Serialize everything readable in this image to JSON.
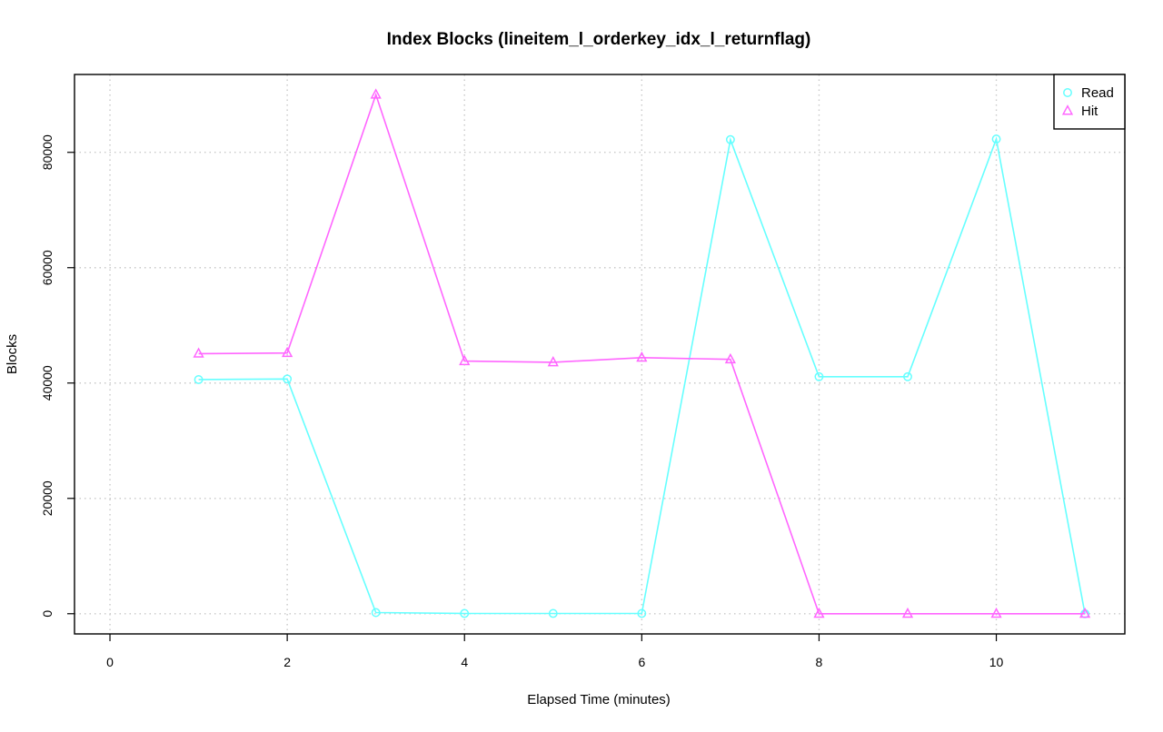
{
  "chart_data": {
    "type": "line",
    "title": "Index Blocks (lineitem_l_orderkey_idx_l_returnflag)",
    "xlabel": "Elapsed Time (minutes)",
    "ylabel": "Blocks",
    "xlim": [
      -0.4,
      11.45
    ],
    "ylim": [
      -3500,
      93500
    ],
    "xticks": [
      0,
      2,
      4,
      6,
      8,
      10
    ],
    "xtick_labels": [
      "0",
      "2",
      "4",
      "6",
      "8",
      "10"
    ],
    "yticks": [
      0,
      20000,
      40000,
      60000,
      80000
    ],
    "ytick_labels": [
      "0",
      "20000",
      "40000",
      "60000",
      "80000"
    ],
    "grid": true,
    "legend_position": "top-right",
    "x": [
      1,
      2,
      3,
      4,
      5,
      6,
      7,
      8,
      9,
      10,
      11
    ],
    "series": [
      {
        "name": "Read",
        "color": "#66ffff",
        "marker": "circle",
        "values": [
          40600,
          40700,
          200,
          50,
          50,
          50,
          82200,
          41100,
          41100,
          82300,
          0
        ]
      },
      {
        "name": "Hit",
        "color": "#ff66ff",
        "marker": "triangle",
        "values": [
          45100,
          45200,
          90000,
          43800,
          43600,
          44400,
          44100,
          0,
          0,
          0,
          0
        ]
      }
    ]
  }
}
